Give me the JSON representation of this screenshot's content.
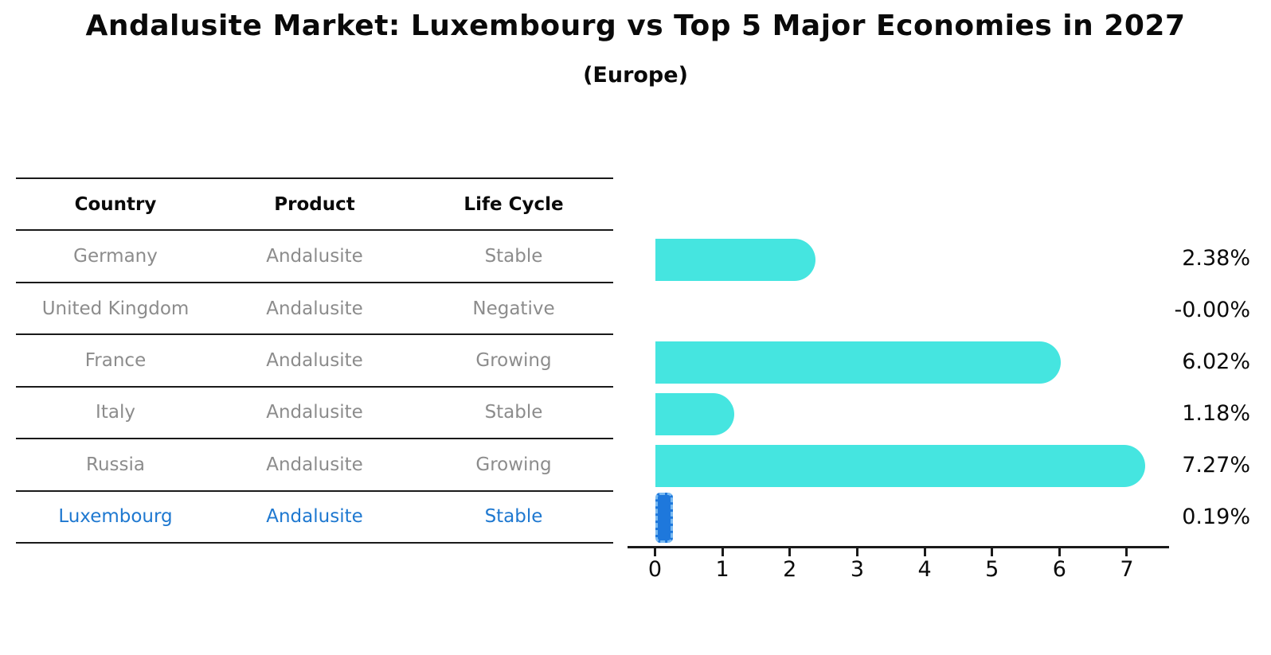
{
  "title": "Andalusite Market: Luxembourg vs Top 5 Major Economies in 2027",
  "subtitle": "(Europe)",
  "table": {
    "headers": {
      "country": "Country",
      "product": "Product",
      "life_cycle": "Life Cycle"
    },
    "rows": [
      {
        "country": "Germany",
        "product": "Andalusite",
        "life_cycle": "Stable",
        "highlight": false
      },
      {
        "country": "United Kingdom",
        "product": "Andalusite",
        "life_cycle": "Negative",
        "highlight": false
      },
      {
        "country": "France",
        "product": "Andalusite",
        "life_cycle": "Growing",
        "highlight": false
      },
      {
        "country": "Italy",
        "product": "Andalusite",
        "life_cycle": "Stable",
        "highlight": false
      },
      {
        "country": "Russia",
        "product": "Andalusite",
        "life_cycle": "Growing",
        "highlight": true
      }
    ],
    "highlight_row": {
      "country": "Luxembourg",
      "product": "Andalusite",
      "life_cycle": "Stable"
    }
  },
  "chart_data": {
    "type": "bar",
    "orientation": "horizontal",
    "categories": [
      "Germany",
      "United Kingdom",
      "France",
      "Italy",
      "Russia",
      "Luxembourg"
    ],
    "values": [
      2.38,
      -0.0,
      6.02,
      1.18,
      7.27,
      0.19
    ],
    "value_labels": [
      "2.38%",
      "-0.00%",
      "6.02%",
      "1.18%",
      "7.27%",
      "0.19%"
    ],
    "x_ticks": [
      0,
      1,
      2,
      3,
      4,
      5,
      6,
      7
    ],
    "xlim": [
      -0.41,
      7.6
    ],
    "grid": false,
    "legend": false,
    "xlabel": "",
    "ylabel": "",
    "bar_color": "#45e5e0",
    "highlight_index": 5,
    "highlight_fill": "#1e78dc",
    "highlight_dash_color": "#79baf2",
    "highlight_text_color": "#1e78d0"
  }
}
